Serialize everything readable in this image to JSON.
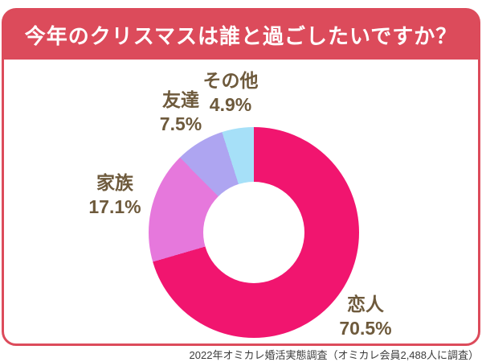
{
  "theme": {
    "accent": "#DC4B5B",
    "label_color": "#6E5A3C",
    "caption_color": "#3C3C3C",
    "card_background": "#FFFFFF"
  },
  "header": {
    "title": "今年のクリスマスは誰と過ごしたいですか？"
  },
  "footer": {
    "source_note": "2022年オミカレ婚活実態調査（オミカレ会員2,488人に調査）"
  },
  "chart_data": {
    "type": "pie",
    "subtype": "donut",
    "title": "今年のクリスマスは誰と過ごしたいですか？",
    "start_angle_deg": 0,
    "direction": "clockwise",
    "inner_radius_ratio": 0.48,
    "segments": [
      {
        "label": "恋人",
        "value": 70.5,
        "pct_label": "70.5%",
        "color": "#F1156F"
      },
      {
        "label": "家族",
        "value": 17.1,
        "pct_label": "17.1%",
        "color": "#E678DC"
      },
      {
        "label": "友達",
        "value": 7.5,
        "pct_label": "7.5%",
        "color": "#AEA5F1"
      },
      {
        "label": "その他",
        "value": 4.9,
        "pct_label": "4.9%",
        "color": "#A6E0F8"
      }
    ]
  }
}
